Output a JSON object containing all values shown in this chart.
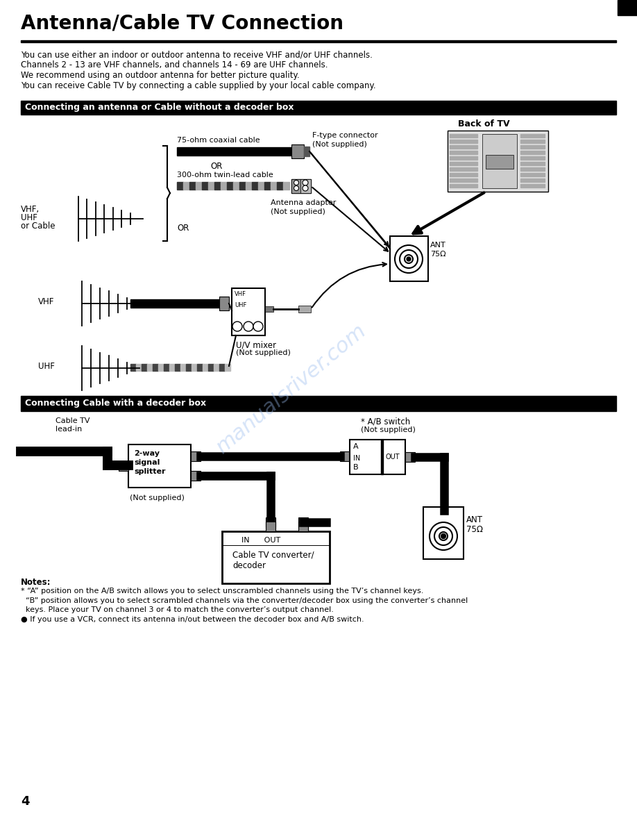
{
  "title": "Antenna/Cable TV Connection",
  "bg_color": "#ffffff",
  "intro_lines": [
    "You can use either an indoor or outdoor antenna to receive VHF and/or UHF channels.",
    "Channels 2 - 13 are VHF channels, and channels 14 - 69 are UHF channels.",
    "We recommend using an outdoor antenna for better picture quality.",
    "You can receive Cable TV by connecting a cable supplied by your local cable company."
  ],
  "section1_title": "Connecting an antenna or Cable without a decoder box",
  "section2_title": "Connecting Cable with a decoder box",
  "notes_title": "Notes:",
  "notes_lines": [
    "* “A” position on the A/B switch allows you to select unscrambled channels using the TV’s channel keys.",
    "  “B” position allows you to select scrambled channels via the converter/decoder box using the converter’s channel",
    "  keys. Place your TV on channel 3 or 4 to match the converter’s output channel.",
    "● If you use a VCR, connect its antenna in/out between the decoder box and A/B switch."
  ],
  "page_number": "4",
  "watermark": "manualsriver.com"
}
